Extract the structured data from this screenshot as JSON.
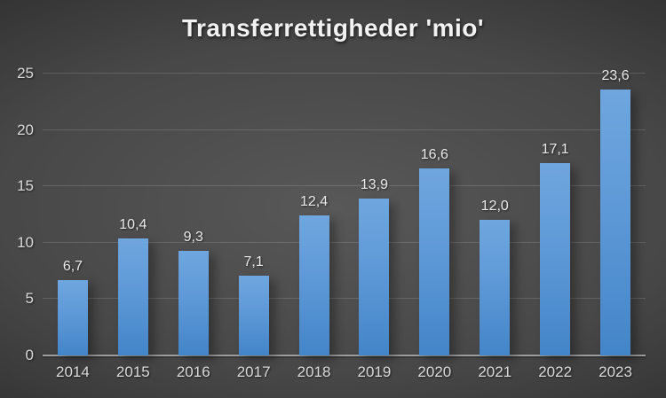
{
  "chart_data": {
    "type": "bar",
    "title": "Transferrettigheder 'mio'",
    "categories": [
      "2014",
      "2015",
      "2016",
      "2017",
      "2018",
      "2019",
      "2020",
      "2021",
      "2022",
      "2023"
    ],
    "values": [
      6.7,
      10.4,
      9.3,
      7.1,
      12.4,
      13.9,
      16.6,
      12.0,
      17.1,
      23.6
    ],
    "value_labels": [
      "6,7",
      "10,4",
      "9,3",
      "7,1",
      "12,4",
      "13,9",
      "16,6",
      "12,0",
      "17,1",
      "23,6"
    ],
    "xlabel": "",
    "ylabel": "",
    "ylim": [
      0,
      25
    ],
    "yticks": [
      0,
      5,
      10,
      15,
      20,
      25
    ],
    "ytick_labels": [
      "0",
      "5",
      "10",
      "15",
      "20",
      "25"
    ],
    "grid": true,
    "legend": false,
    "colors": {
      "bar_top": "#6fa6df",
      "bar_bottom": "#4385c9",
      "gridline": "rgba(255,255,255,0.14)",
      "axis_line": "#9e9e9e",
      "tick_label": "#d9d9d9",
      "value_label": "#e9e9e9",
      "title": "#f2f2f2",
      "background_center": "#585858",
      "background_edge": "#1c1c1c"
    }
  }
}
